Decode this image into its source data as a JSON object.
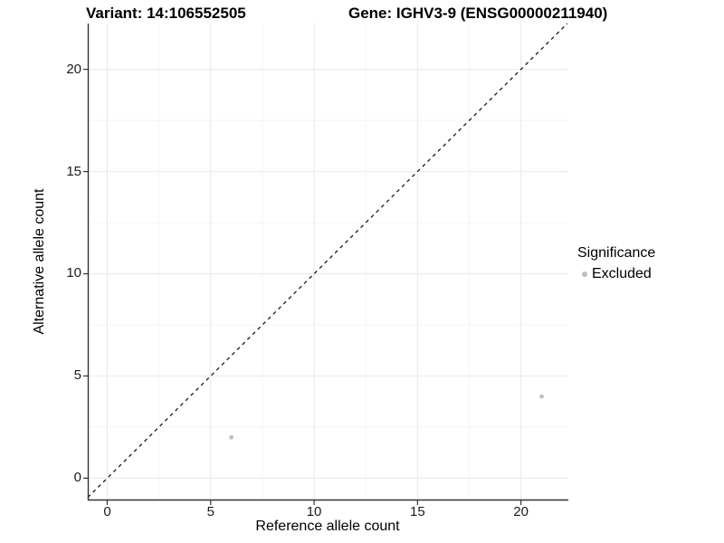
{
  "chart_data": {
    "type": "scatter",
    "titles": {
      "variant": "Variant: 14:106552505",
      "gene": "Gene: IGHV3-9 (ENSG00000211940)"
    },
    "xlabel": "Reference allele count",
    "ylabel": "Alternative allele count",
    "xlim": [
      -0.94,
      22.29
    ],
    "ylim": [
      -1.09,
      22.24
    ],
    "x_ticks": [
      0,
      5,
      10,
      15,
      20
    ],
    "y_ticks": [
      0,
      5,
      10,
      15,
      20
    ],
    "x_minor": [
      2.5,
      7.5,
      12.5,
      17.5
    ],
    "y_minor": [
      2.5,
      7.5,
      12.5,
      17.5
    ],
    "grid": "major+minor",
    "reference_line": {
      "type": "identity",
      "slope": 1,
      "intercept": 0,
      "style": "dashed"
    },
    "points": [
      {
        "x": 6,
        "y": 2,
        "series": "Excluded"
      },
      {
        "x": 21,
        "y": 4,
        "series": "Excluded"
      }
    ],
    "legend": {
      "title": "Significance",
      "position": "right",
      "entries": [
        {
          "label": "Excluded",
          "color": "#bebebe"
        }
      ]
    },
    "colors": {
      "point": "#c0c0c0",
      "legend_key": "#b5b5b5",
      "grid_major": "#ebebeb",
      "grid_minor": "#f4f4f4",
      "axis": "#333333",
      "abline": "#1a1a1a",
      "background": "#ffffff"
    }
  }
}
